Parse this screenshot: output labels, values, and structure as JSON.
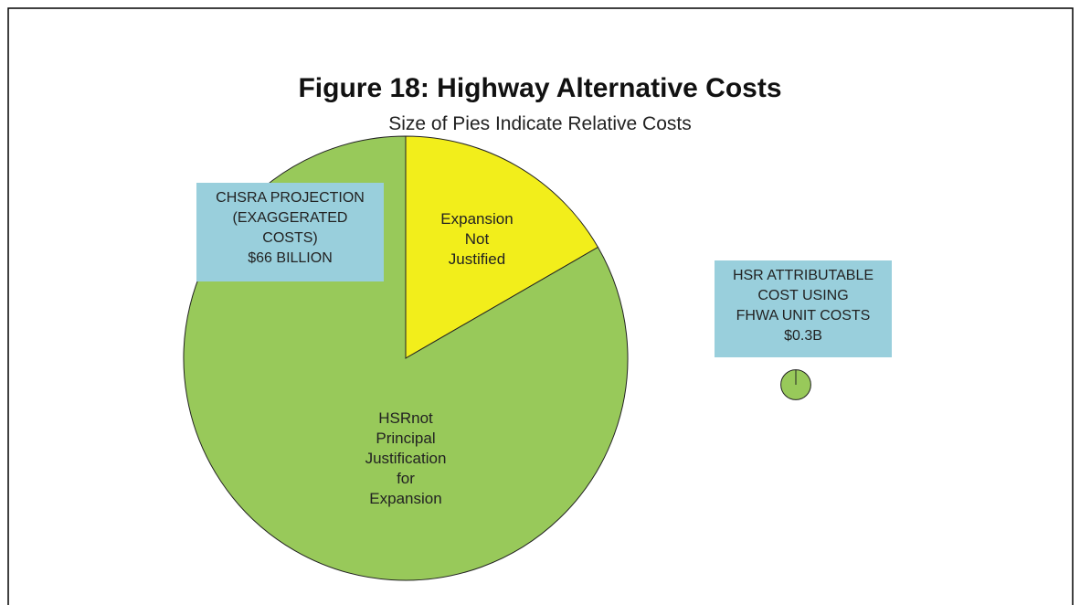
{
  "chart_data": [
    {
      "type": "pie",
      "title": "Figure 18: Highway Alternative Costs",
      "subtitle": "Size of Pies Indicate Relative Costs",
      "annotation": "CHSRA PROJECTION\n(EXAGGERATED\nCOSTS)\n$66 BILLION",
      "categories": [
        "Expansion\nNot\nJustified",
        "HSRnot\nPrincipal\nJustification\nfor\nExpansion"
      ],
      "values": [
        11,
        55
      ],
      "colors": [
        "#f2ee1b",
        "#98c95a"
      ]
    },
    {
      "type": "pie",
      "annotation": "HSR ATTRIBUTABLE\nCOST USING\nFHWA UNIT COSTS\n$0.3B",
      "categories": [
        null
      ],
      "values": [
        0.3
      ],
      "colors": [
        "#98c95a"
      ]
    }
  ]
}
